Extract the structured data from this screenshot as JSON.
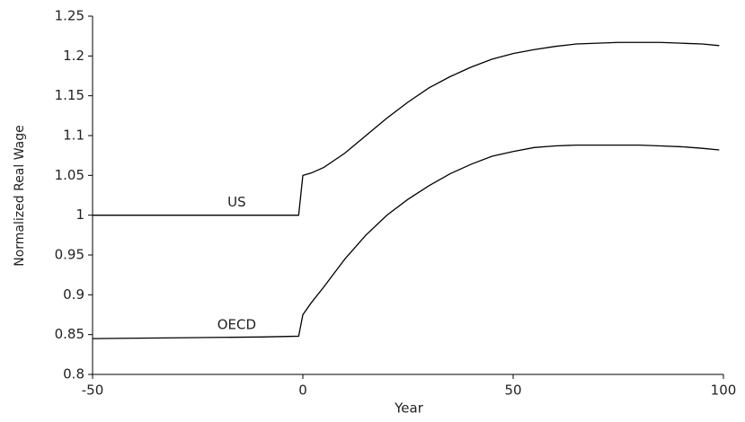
{
  "chart_data": {
    "type": "line",
    "xlabel": "Year",
    "ylabel": "Normalized Real Wage",
    "x": [
      -50,
      -30,
      -10,
      -1,
      0,
      2,
      5,
      10,
      15,
      20,
      25,
      30,
      35,
      40,
      45,
      50,
      55,
      60,
      65,
      70,
      75,
      80,
      85,
      90,
      95,
      99
    ],
    "series": [
      {
        "name": "US",
        "color": "#000000",
        "values": [
          1,
          1,
          1,
          1,
          1.05,
          1.053,
          1.06,
          1.078,
          1.1,
          1.122,
          1.142,
          1.16,
          1.174,
          1.186,
          1.196,
          1.203,
          1.208,
          1.212,
          1.215,
          1.216,
          1.217,
          1.217,
          1.217,
          1.216,
          1.215,
          1.213
        ]
      },
      {
        "name": "OECD",
        "color": "#000000",
        "values": [
          0.845,
          0.846,
          0.847,
          0.848,
          0.875,
          0.89,
          0.91,
          0.945,
          0.975,
          1.0,
          1.02,
          1.037,
          1.052,
          1.064,
          1.074,
          1.08,
          1.085,
          1.087,
          1.088,
          1.088,
          1.088,
          1.088,
          1.087,
          1.086,
          1.084,
          1.082
        ]
      }
    ],
    "xlim": [
      -50,
      100
    ],
    "xticks": [
      -50,
      0,
      50,
      100
    ],
    "ylim": [
      0.8,
      1.25
    ],
    "yticks": [
      0.8,
      0.85,
      0.9,
      0.95,
      1,
      1.05,
      1.1,
      1.15,
      1.2,
      1.25
    ],
    "grid": false
  }
}
